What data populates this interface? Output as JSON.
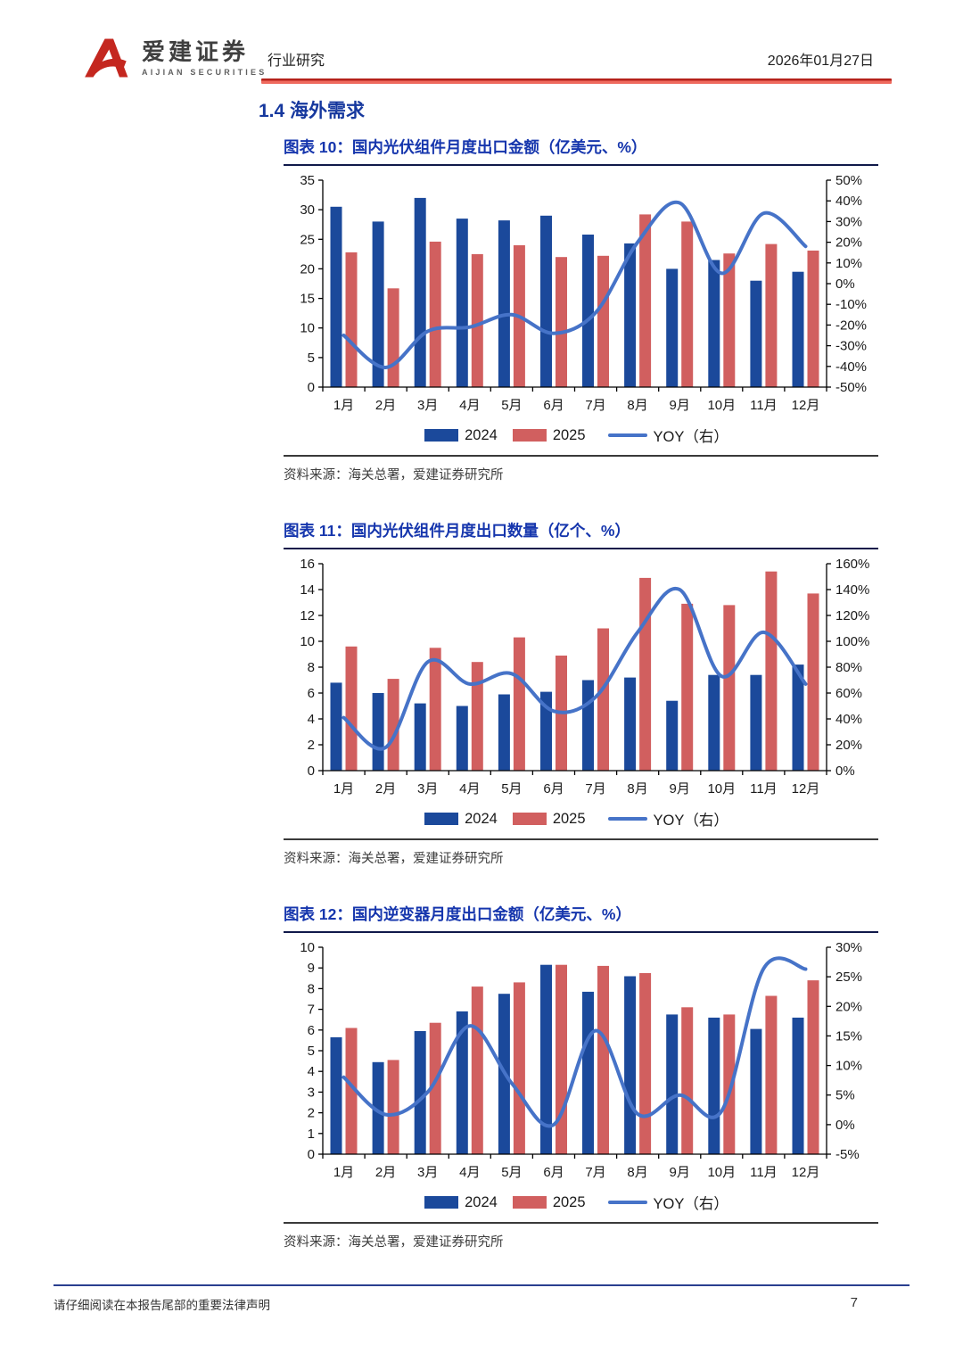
{
  "header": {
    "brand_cn": "爱建证券",
    "brand_en": "AIJIAN SECURITIES",
    "doc_type": "行业研究",
    "date": "2026年01月27日"
  },
  "section": {
    "title": "1.4 海外需求"
  },
  "colors": {
    "bar_2024": "#1b499b",
    "bar_2025": "#d15f5f",
    "line_yoy": "#4673c8",
    "title_blue": "#1636ad",
    "header_red": "#c4271f"
  },
  "chart_data": [
    {
      "type": "bar+line",
      "title": "图表 10：国内光伏组件月度出口金额（亿美元、%）",
      "source": "资料来源：海关总署，爱建证券研究所",
      "categories": [
        "1月",
        "2月",
        "3月",
        "4月",
        "5月",
        "6月",
        "7月",
        "8月",
        "9月",
        "10月",
        "11月",
        "12月"
      ],
      "series": [
        {
          "name": "2024",
          "type": "bar",
          "axis": "left",
          "values": [
            30.5,
            28.0,
            32.0,
            28.5,
            28.2,
            29.0,
            25.8,
            24.3,
            20.0,
            21.5,
            18.0,
            19.5
          ]
        },
        {
          "name": "2025",
          "type": "bar",
          "axis": "left",
          "values": [
            22.8,
            16.7,
            24.6,
            22.5,
            24.0,
            22.0,
            22.2,
            29.2,
            28.0,
            22.6,
            24.2,
            23.1
          ]
        },
        {
          "name": "YOY（右）",
          "type": "line",
          "axis": "right",
          "values": [
            -25,
            -40.5,
            -23,
            -21,
            -15,
            -24,
            -14,
            20,
            39,
            5,
            34,
            18
          ]
        }
      ],
      "left_axis": {
        "min": 0,
        "max": 35,
        "step": 5,
        "format": "number"
      },
      "right_axis": {
        "min": -50,
        "max": 50,
        "step": 10,
        "format": "percent"
      },
      "legend_position": "bottom"
    },
    {
      "type": "bar+line",
      "title": "图表 11：国内光伏组件月度出口数量（亿个、%）",
      "source": "资料来源：海关总署，爱建证券研究所",
      "categories": [
        "1月",
        "2月",
        "3月",
        "4月",
        "5月",
        "6月",
        "7月",
        "8月",
        "9月",
        "10月",
        "11月",
        "12月"
      ],
      "series": [
        {
          "name": "2024",
          "type": "bar",
          "axis": "left",
          "values": [
            6.8,
            6.0,
            5.2,
            5.0,
            5.9,
            6.1,
            7.0,
            7.2,
            5.4,
            7.4,
            7.4,
            8.2
          ]
        },
        {
          "name": "2025",
          "type": "bar",
          "axis": "left",
          "values": [
            9.6,
            7.1,
            9.5,
            8.4,
            10.3,
            8.9,
            11.0,
            14.9,
            12.9,
            12.8,
            15.4,
            13.7
          ]
        },
        {
          "name": "YOY（右）",
          "type": "line",
          "axis": "right",
          "values": [
            41,
            18,
            84,
            67,
            75,
            46,
            57,
            107,
            140,
            73,
            107,
            67
          ]
        }
      ],
      "left_axis": {
        "min": 0,
        "max": 16,
        "step": 2,
        "format": "number"
      },
      "right_axis": {
        "min": 0,
        "max": 160,
        "step": 20,
        "format": "percent"
      },
      "legend_position": "bottom"
    },
    {
      "type": "bar+line",
      "title": "图表 12：国内逆变器月度出口金额（亿美元、%）",
      "source": "资料来源：海关总署，爱建证券研究所",
      "categories": [
        "1月",
        "2月",
        "3月",
        "4月",
        "5月",
        "6月",
        "7月",
        "8月",
        "9月",
        "10月",
        "11月",
        "12月"
      ],
      "series": [
        {
          "name": "2024",
          "type": "bar",
          "axis": "left",
          "values": [
            5.65,
            4.45,
            5.95,
            6.9,
            7.75,
            9.15,
            7.85,
            8.6,
            6.75,
            6.6,
            6.05,
            6.6
          ]
        },
        {
          "name": "2025",
          "type": "bar",
          "axis": "left",
          "values": [
            6.1,
            4.55,
            6.35,
            8.1,
            8.3,
            9.15,
            9.1,
            8.75,
            7.1,
            6.75,
            7.65,
            8.4
          ]
        },
        {
          "name": "YOY（右）",
          "type": "line",
          "axis": "right",
          "values": [
            8,
            1.7,
            5.5,
            16.7,
            7,
            0,
            15.9,
            1.8,
            5,
            2.3,
            26.4,
            26.3
          ]
        }
      ],
      "left_axis": {
        "min": 0,
        "max": 10,
        "step": 1,
        "format": "number"
      },
      "right_axis": {
        "min": -5,
        "max": 30,
        "step": 5,
        "format": "percent"
      },
      "legend_position": "bottom"
    }
  ],
  "footer": {
    "disclaimer": "请仔细阅读在本报告尾部的重要法律声明",
    "page_number": "7"
  }
}
